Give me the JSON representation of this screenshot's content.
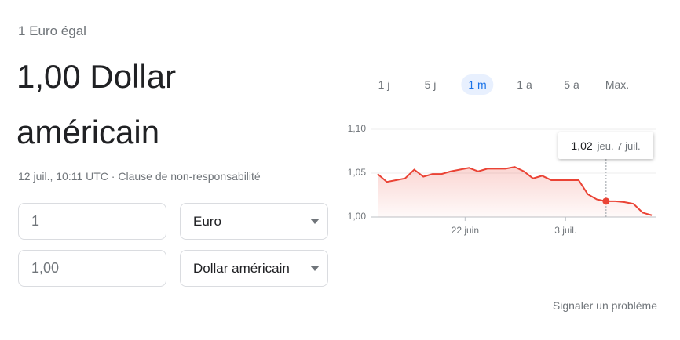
{
  "header": {
    "subtitle": "1 Euro égal",
    "result": "1,00 Dollar américain",
    "timestamp": "12 juil., 10:11 UTC",
    "separator": "·",
    "disclaimer": "Clause de non-responsabilité"
  },
  "converter": {
    "rows": [
      {
        "amount": "1",
        "currency": "Euro"
      },
      {
        "amount": "1,00",
        "currency": "Dollar américain"
      }
    ]
  },
  "ranges": {
    "options": [
      "1 j",
      "5 j",
      "1 m",
      "1 a",
      "5 a",
      "Max."
    ],
    "selected": "1 m"
  },
  "chart_data": {
    "type": "line",
    "x": [
      0,
      1,
      3,
      4,
      5,
      6,
      7,
      8,
      10,
      11,
      12,
      14,
      15,
      16,
      17,
      18,
      19,
      22,
      23,
      24,
      25,
      26,
      27,
      28,
      29,
      30
    ],
    "series": [
      {
        "color": "#ea4335",
        "values": [
          1.049,
          1.04,
          1.044,
          1.054,
          1.046,
          1.049,
          1.049,
          1.052,
          1.056,
          1.052,
          1.055,
          1.055,
          1.057,
          1.052,
          1.044,
          1.047,
          1.042,
          1.042,
          1.026,
          1.02,
          1.018,
          1.018,
          1.017,
          1.015,
          1.005,
          1.002
        ]
      }
    ],
    "xlim": [
      0,
      30
    ],
    "xticks": [
      {
        "value": 10,
        "label": "22 juin"
      },
      {
        "value": 21,
        "label": "3 juil."
      }
    ],
    "ylim": [
      0.995,
      1.1
    ],
    "yticks": [
      {
        "value": 1.1,
        "label": "1,10"
      },
      {
        "value": 1.05,
        "label": "1,05"
      },
      {
        "value": 1.0,
        "label": "1,00"
      }
    ],
    "grid": true,
    "tooltip": {
      "x": 25,
      "value": 1.018,
      "value_label": "1,02",
      "date": "jeu. 7 juil."
    }
  },
  "footer": {
    "report": "Signaler un problème"
  }
}
